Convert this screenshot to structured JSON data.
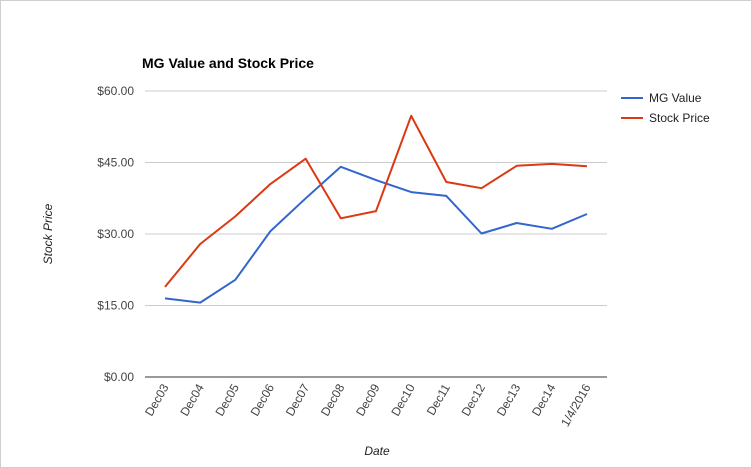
{
  "chart_data": {
    "type": "line",
    "title": "MG Value and Stock Price",
    "xlabel": "Date",
    "ylabel": "Stock Price",
    "ylim": [
      0,
      60
    ],
    "yticks": [
      0,
      15,
      30,
      45,
      60
    ],
    "ytick_labels": [
      "$0.00",
      "$15.00",
      "$30.00",
      "$45.00",
      "$60.00"
    ],
    "categories": [
      "Dec03",
      "Dec04",
      "Dec05",
      "Dec06",
      "Dec07",
      "Dec08",
      "Dec09",
      "Dec10",
      "Dec11",
      "Dec12",
      "Dec13",
      "Dec14",
      "1/4/2016"
    ],
    "grid": true,
    "legend_position": "right",
    "series": [
      {
        "name": "MG Value",
        "color": "#3366cc",
        "values": [
          16.5,
          15.6,
          20.4,
          30.6,
          37.5,
          44.1,
          41.3,
          38.8,
          38.0,
          30.1,
          32.3,
          31.1,
          34.2
        ]
      },
      {
        "name": "Stock Price",
        "color": "#dc3912",
        "values": [
          18.9,
          27.9,
          33.7,
          40.5,
          45.8,
          33.3,
          34.8,
          54.8,
          40.9,
          39.6,
          44.3,
          44.7,
          44.2
        ]
      }
    ]
  }
}
